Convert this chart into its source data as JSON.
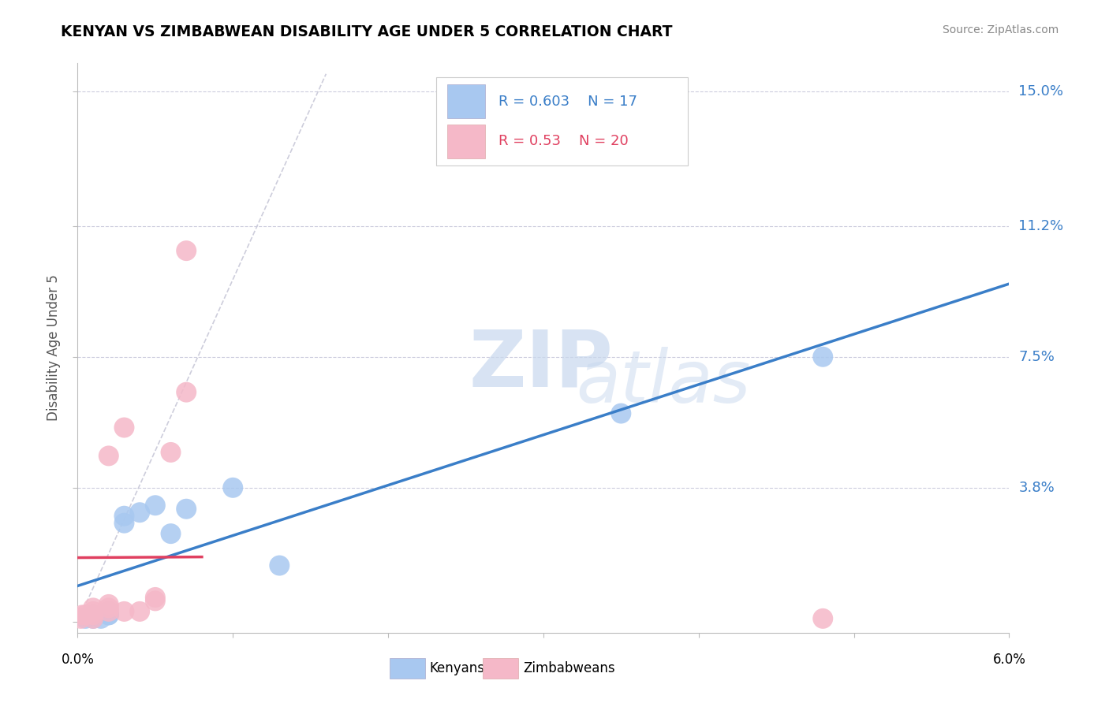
{
  "title": "KENYAN VS ZIMBABWEAN DISABILITY AGE UNDER 5 CORRELATION CHART",
  "source": "Source: ZipAtlas.com",
  "ylabel": "Disability Age Under 5",
  "xmin": 0.0,
  "xmax": 0.06,
  "ymin": -0.003,
  "ymax": 0.158,
  "kenyan_R": 0.603,
  "kenyan_N": 17,
  "zimbabwean_R": 0.53,
  "zimbabwean_N": 20,
  "kenyan_color": "#A8C8F0",
  "zimbabwean_color": "#F5B8C8",
  "kenyan_line_color": "#3A7EC8",
  "zimbabwean_line_color": "#E04060",
  "ref_line_color": "#C8C8D8",
  "kenyan_x": [
    0.0005,
    0.001,
    0.001,
    0.0015,
    0.002,
    0.002,
    0.002,
    0.003,
    0.003,
    0.004,
    0.005,
    0.006,
    0.007,
    0.01,
    0.013,
    0.035,
    0.048
  ],
  "kenyan_y": [
    0.001,
    0.001,
    0.002,
    0.001,
    0.002,
    0.003,
    0.002,
    0.028,
    0.03,
    0.031,
    0.033,
    0.025,
    0.032,
    0.038,
    0.016,
    0.059,
    0.075
  ],
  "zimbabwean_x": [
    0.0002,
    0.0003,
    0.0005,
    0.001,
    0.001,
    0.001,
    0.001,
    0.002,
    0.002,
    0.002,
    0.002,
    0.003,
    0.003,
    0.004,
    0.005,
    0.005,
    0.006,
    0.007,
    0.007,
    0.048
  ],
  "zimbabwean_y": [
    0.001,
    0.002,
    0.002,
    0.001,
    0.002,
    0.003,
    0.004,
    0.003,
    0.004,
    0.005,
    0.047,
    0.003,
    0.055,
    0.003,
    0.006,
    0.007,
    0.048,
    0.065,
    0.105,
    0.001
  ],
  "ytick_vals": [
    0.038,
    0.075,
    0.112,
    0.15
  ],
  "ytick_labels": [
    "3.8%",
    "7.5%",
    "11.2%",
    "15.0%"
  ],
  "watermark_top": "ZIP",
  "watermark_bot": "atlas",
  "background_color": "#FFFFFF",
  "grid_color": "#CCCCDD"
}
